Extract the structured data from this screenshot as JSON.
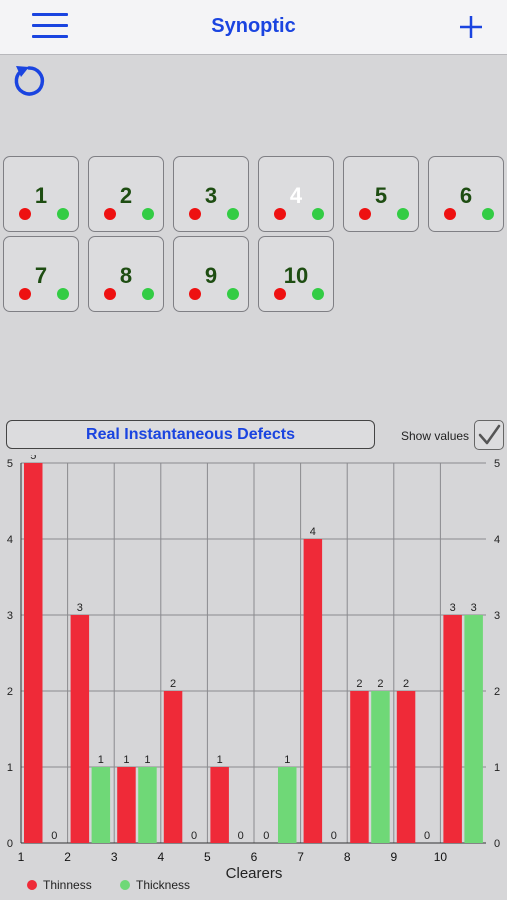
{
  "navbar": {
    "title": "Synoptic",
    "menu_icon": "hamburger-menu-icon",
    "add_icon": "plus-icon",
    "accent": "#1a44e0"
  },
  "toolbar": {
    "refresh_icon": "refresh-icon"
  },
  "tiles": [
    {
      "label": "1",
      "active": false
    },
    {
      "label": "2",
      "active": false
    },
    {
      "label": "3",
      "active": false
    },
    {
      "label": "4",
      "active": true
    },
    {
      "label": "5",
      "active": false
    },
    {
      "label": "6",
      "active": false
    },
    {
      "label": "7",
      "active": false
    },
    {
      "label": "8",
      "active": false
    },
    {
      "label": "9",
      "active": false
    },
    {
      "label": "10",
      "active": false
    }
  ],
  "status_colors": {
    "red": "#ee1111",
    "green": "#33cc44"
  },
  "section": {
    "title": "Real Instantaneous Defects",
    "show_values_label": "Show values",
    "show_values_checked": true
  },
  "chart_data": {
    "type": "bar",
    "categories": [
      "1",
      "2",
      "3",
      "4",
      "5",
      "6",
      "7",
      "8",
      "9",
      "10"
    ],
    "series": [
      {
        "name": "Thinness",
        "color": "#ef2a38",
        "values": [
          5,
          3,
          1,
          2,
          1,
          0,
          4,
          2,
          2,
          3
        ]
      },
      {
        "name": "Thickness",
        "color": "#6fd877",
        "values": [
          0,
          1,
          1,
          0,
          0,
          1,
          0,
          2,
          0,
          3
        ]
      }
    ],
    "xlabel": "Clearers",
    "ylabel": "",
    "ylim": [
      0,
      5
    ],
    "yticks": [
      "0",
      "1",
      "2",
      "3",
      "4",
      "5"
    ],
    "grid": true,
    "show_values": true,
    "legend_position": "bottom-left"
  }
}
